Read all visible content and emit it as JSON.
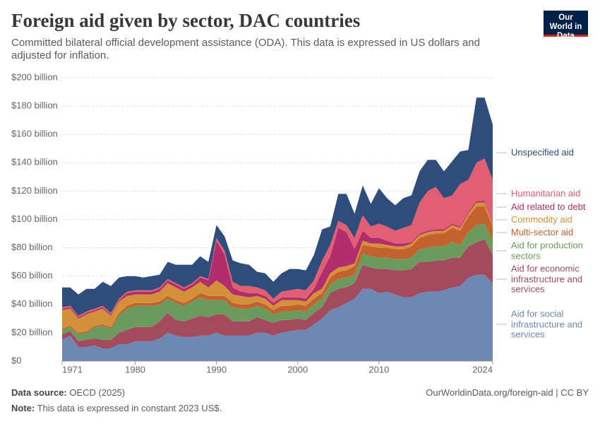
{
  "chart_data": {
    "type": "stacked-area",
    "title": "Foreign aid given by sector, DAC countries",
    "subtitle": "Committed bilateral official development assistance (ODA). This data is expressed in US dollars and adjusted for inflation.",
    "logo": "Our World in Data",
    "source_label": "Data source:",
    "source": "OECD (2025)",
    "url": "OurWorldinData.org/foreign-aid | CC BY",
    "note_label": "Note:",
    "note": "This data is expressed in constant 2023 US$.",
    "x": [
      1971,
      1972,
      1973,
      1974,
      1975,
      1976,
      1977,
      1978,
      1979,
      1980,
      1981,
      1982,
      1983,
      1984,
      1985,
      1986,
      1987,
      1988,
      1989,
      1990,
      1991,
      1992,
      1993,
      1994,
      1995,
      1996,
      1997,
      1998,
      1999,
      2000,
      2001,
      2002,
      2003,
      2004,
      2005,
      2006,
      2007,
      2008,
      2009,
      2010,
      2011,
      2012,
      2013,
      2014,
      2015,
      2016,
      2017,
      2018,
      2019,
      2020,
      2021,
      2022,
      2023,
      2024
    ],
    "xlim": [
      1971,
      2024
    ],
    "xticks": [
      1971,
      1980,
      1990,
      2000,
      2010,
      2024
    ],
    "ylim": [
      0,
      200
    ],
    "yticks": [
      {
        "value": 0,
        "label": "$0"
      },
      {
        "value": 20,
        "label": "$20 billion"
      },
      {
        "value": 40,
        "label": "$40 billion"
      },
      {
        "value": 60,
        "label": "$60 billion"
      },
      {
        "value": 80,
        "label": "$80 billion"
      },
      {
        "value": 100,
        "label": "$100 billion"
      },
      {
        "value": 120,
        "label": "$120 billion"
      },
      {
        "value": 140,
        "label": "$140 billion"
      },
      {
        "value": 160,
        "label": "$160 billion"
      },
      {
        "value": 180,
        "label": "$180 billion"
      },
      {
        "value": 200,
        "label": "$200 billion"
      }
    ],
    "grid": true,
    "series": [
      {
        "name": "Aid for social infrastructure and services",
        "color": "#6f88b3",
        "values": [
          15,
          18,
          10,
          10,
          11,
          9,
          9,
          12,
          12,
          14,
          14,
          14,
          16,
          20,
          18,
          17,
          17,
          18,
          18,
          20,
          18,
          18,
          18,
          18,
          20,
          20,
          18,
          20,
          21,
          22,
          22,
          26,
          30,
          36,
          38,
          41,
          44,
          51,
          51,
          48,
          49,
          47,
          45,
          45,
          48,
          49,
          49,
          50,
          52,
          53,
          59,
          61,
          61,
          55
        ]
      },
      {
        "name": "Aid for economic infrastructure and services",
        "color": "#a34a5e",
        "values": [
          4,
          3,
          4,
          5,
          5,
          6,
          6,
          8,
          10,
          10,
          10,
          10,
          12,
          14,
          11,
          11,
          13,
          14,
          13,
          13,
          15,
          10,
          10,
          10,
          11,
          9,
          9,
          9,
          8,
          8,
          7,
          8,
          8,
          12,
          13,
          11,
          11,
          17,
          15,
          17,
          16,
          17,
          19,
          20,
          22,
          21,
          22,
          21,
          21,
          20,
          22,
          23,
          25,
          20
        ]
      },
      {
        "name": "Aid for production sectors",
        "color": "#6c9a5c",
        "values": [
          3,
          3,
          5,
          5,
          8,
          10,
          8,
          12,
          15,
          15,
          15,
          15,
          12,
          10,
          12,
          11,
          12,
          13,
          12,
          10,
          10,
          10,
          9,
          9,
          8,
          8,
          6,
          6,
          6,
          6,
          6,
          6,
          6,
          6,
          7,
          7,
          6,
          8,
          8,
          8,
          8,
          8,
          8,
          8,
          9,
          10,
          10,
          10,
          11,
          9,
          10,
          12,
          11,
          10
        ]
      },
      {
        "name": "Multi-sector aid",
        "color": "#c4622d",
        "values": [
          1,
          1,
          1,
          1,
          1,
          1,
          1,
          2,
          2,
          2,
          2,
          2,
          2,
          2,
          2,
          2,
          2,
          3,
          3,
          3,
          3,
          3,
          3,
          3,
          3,
          3,
          3,
          4,
          4,
          4,
          4,
          4,
          4,
          5,
          5,
          5,
          6,
          6,
          7,
          7,
          7,
          7,
          7,
          8,
          8,
          9,
          9,
          9,
          10,
          10,
          11,
          13,
          12,
          10
        ]
      },
      {
        "name": "Commodity aid",
        "color": "#d4913a",
        "values": [
          13,
          12,
          10,
          12,
          10,
          11,
          8,
          8,
          7,
          6,
          6,
          6,
          7,
          9,
          9,
          8,
          8,
          8,
          6,
          11,
          7,
          6,
          6,
          5,
          4,
          4,
          3,
          4,
          4,
          3,
          3,
          4,
          3,
          3,
          3,
          3,
          2,
          3,
          2,
          3,
          2,
          2,
          2,
          2,
          2,
          2,
          2,
          2,
          2,
          2,
          2,
          3,
          3,
          2
        ]
      },
      {
        "name": "Aid related to debt",
        "color": "#b22d6c",
        "values": [
          1,
          1,
          1,
          1,
          1,
          1,
          1,
          1,
          2,
          2,
          2,
          2,
          2,
          2,
          2,
          2,
          2,
          3,
          5,
          28,
          22,
          5,
          3,
          3,
          2,
          2,
          2,
          2,
          2,
          2,
          2,
          3,
          12,
          12,
          28,
          24,
          10,
          7,
          4,
          4,
          3,
          2,
          2,
          1,
          1,
          1,
          1,
          1,
          1,
          1,
          1,
          1,
          1,
          1
        ]
      },
      {
        "name": "Humanitarian aid",
        "color": "#e25e72",
        "values": [
          1,
          1,
          1,
          1,
          1,
          1,
          1,
          1,
          1,
          1,
          1,
          1,
          1,
          1,
          1,
          1,
          1,
          1,
          1,
          2,
          3,
          4,
          4,
          5,
          4,
          4,
          3,
          4,
          5,
          6,
          6,
          6,
          8,
          8,
          5,
          5,
          8,
          11,
          8,
          10,
          10,
          9,
          11,
          12,
          22,
          28,
          30,
          22,
          20,
          30,
          23,
          27,
          30,
          30
        ]
      },
      {
        "name": "Unspecified aid",
        "color": "#2f4d7a",
        "values": [
          14,
          13,
          15,
          16,
          14,
          17,
          19,
          15,
          11,
          10,
          9,
          10,
          9,
          12,
          13,
          16,
          13,
          14,
          12,
          9,
          10,
          15,
          16,
          15,
          11,
          12,
          12,
          13,
          15,
          14,
          14,
          18,
          22,
          13,
          19,
          22,
          17,
          21,
          16,
          25,
          20,
          18,
          21,
          21,
          22,
          22,
          19,
          19,
          24,
          23,
          21,
          46,
          43,
          39
        ]
      }
    ]
  }
}
